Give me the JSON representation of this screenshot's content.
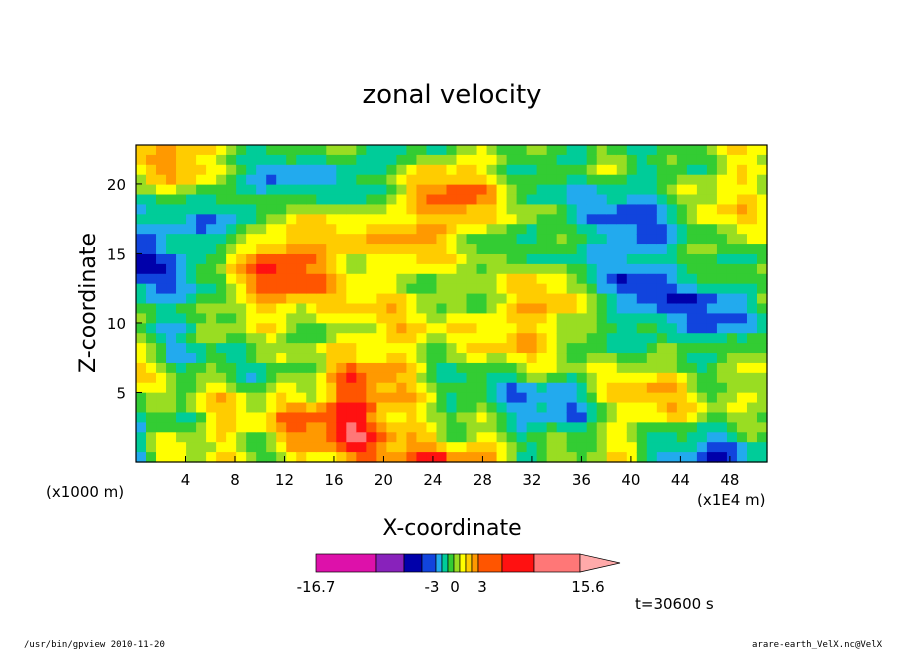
{
  "chart_data": {
    "type": "heatmap",
    "title": "zonal velocity",
    "xlabel": "X-coordinate",
    "ylabel": "Z-coordinate",
    "x_unit_left": "(x1000 m)",
    "x_unit_right": "(x1E4 m)",
    "xlim": [
      0,
      51
    ],
    "ylim": [
      0,
      22.8
    ],
    "x_ticks": [
      "4",
      "8",
      "12",
      "16",
      "20",
      "24",
      "28",
      "32",
      "36",
      "40",
      "44",
      "48"
    ],
    "y_ticks": [
      "5",
      "10",
      "15",
      "20"
    ],
    "colorbar": {
      "min_label": "-16.7",
      "max_label": "15.6",
      "mid_labels": [
        "-3",
        "0",
        "3"
      ],
      "colors": [
        "#dd11aa",
        "#8822bb",
        "#0000aa",
        "#1144dd",
        "#22aaee",
        "#00cc99",
        "#33cc33",
        "#99dd22",
        "#ffff00",
        "#ffcc00",
        "#ff9900",
        "#ff5500",
        "#ff1111",
        "#ff7777",
        "#ffaaaa"
      ]
    },
    "annotation": "t=30600 s",
    "grid": false
  },
  "footer": {
    "left": "/usr/bin/gpview   2010-11-20",
    "right": "arare-earth_VelX.nc@VelX"
  }
}
